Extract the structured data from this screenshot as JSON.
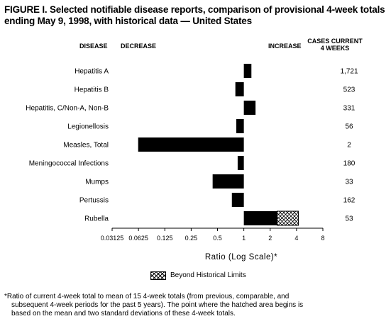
{
  "title": "FIGURE I. Selected notifiable disease reports, comparison of provisional 4-week totals ending May 9, 1998, with historical data — United States",
  "headers": {
    "disease": "DISEASE",
    "decrease": "DECREASE",
    "increase": "INCREASE",
    "cases": "CASES CURRENT 4 WEEKS"
  },
  "legend": {
    "label": "Beyond Historical Limits"
  },
  "footnote": [
    "*Ratio of current 4-week total to mean of 15 4-week totals (from previous, comparable, and",
    "subsequent 4-week periods for the past 5 years). The point where the hatched area begins is",
    "based on the mean and two standard deviations of these 4-week totals."
  ],
  "chart_data": {
    "type": "bar",
    "orientation": "horizontal",
    "x_scale": "log2",
    "xlabel": "Ratio (Log Scale)*",
    "xlim": [
      0.03125,
      8
    ],
    "x_ticks": [
      "0.03125",
      "0.0625",
      "0.125",
      "0.25",
      "0.5",
      "1",
      "2",
      "4",
      "8"
    ],
    "baseline": 1,
    "categories": [
      "Hepatitis A",
      "Hepatitis B",
      "Hepatitis, C/Non-A, Non-B",
      "Legionellosis",
      "Measles, Total",
      "Meningococcal Infections",
      "Mumps",
      "Pertussis",
      "Rubella"
    ],
    "values": [
      1.22,
      0.8,
      1.36,
      0.82,
      0.062,
      0.85,
      0.44,
      0.73,
      4.2
    ],
    "beyond_historical_limit_start": [
      null,
      null,
      null,
      null,
      null,
      null,
      null,
      null,
      2.4
    ],
    "cases_current_4_weeks": [
      "1,721",
      "523",
      "331",
      "56",
      "2",
      "180",
      "33",
      "162",
      "53"
    ],
    "colors": {
      "bar": "#000000",
      "hatch": "#000000",
      "background": "#ffffff"
    }
  }
}
